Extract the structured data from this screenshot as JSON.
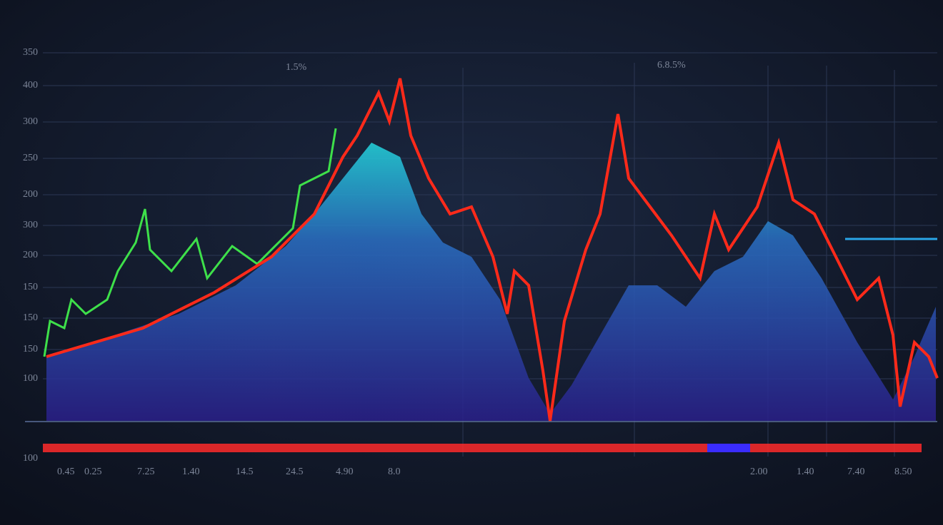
{
  "y_labels": [
    "350",
    "400",
    "300",
    "250",
    "200",
    "300",
    "200",
    "150",
    "150",
    "150",
    "100",
    "100"
  ],
  "x_labels": [
    "0.45",
    "0.25",
    "7.25",
    "1.40",
    "14.5",
    "24.5",
    "4.90",
    "8.0",
    "2.00",
    "1.40",
    "7.40",
    "8.50"
  ],
  "top_labels": [
    "1.5%",
    "6.8.5%"
  ]
}
